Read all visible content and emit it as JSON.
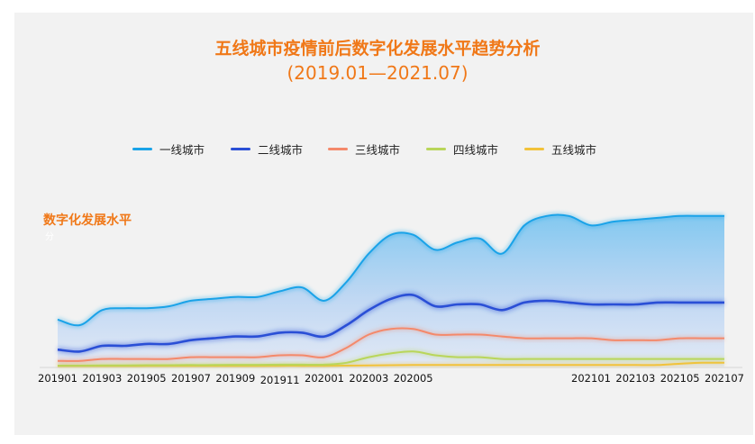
{
  "title": "五线城市疫情前后数字化发展水平趋势分析",
  "subtitle": "(2019.01—2021.07)",
  "legend": [
    {
      "name": "一线城市",
      "color": "#1aa3e8"
    },
    {
      "name": "二线城市",
      "color": "#2a4fd6"
    },
    {
      "name": "三线城市",
      "color": "#f4896b"
    },
    {
      "name": "四线城市",
      "color": "#b9d65a"
    },
    {
      "name": "五线城市",
      "color": "#f2c23a"
    }
  ],
  "chart_data": {
    "type": "area",
    "ylabel": "数字化发展水平",
    "yunit": "分",
    "x": [
      "201901",
      "201902",
      "201903",
      "201904",
      "201905",
      "201906",
      "201907",
      "201908",
      "201909",
      "201910",
      "201911",
      "201912",
      "202001",
      "202002",
      "202003",
      "202004",
      "202005",
      "202006",
      "202007",
      "202008",
      "202009",
      "202010",
      "202011",
      "202012",
      "202101",
      "202102",
      "202103",
      "202104",
      "202105",
      "202106",
      "202107"
    ],
    "xtick_labels": [
      "201901",
      "201903",
      "201905",
      "201907",
      "201909",
      "201911",
      "202001",
      "202003",
      "202005",
      "202101",
      "202103",
      "202105",
      "202107"
    ],
    "ylim": [
      0,
      100
    ],
    "grid": false,
    "legend_position": "top",
    "series": [
      {
        "name": "一线城市",
        "color": "#1aa3e8",
        "values": [
          25,
          22,
          30,
          31,
          31,
          32,
          35,
          36,
          37,
          37,
          40,
          42,
          35,
          45,
          60,
          70,
          70,
          62,
          66,
          68,
          60,
          75,
          80,
          80,
          75,
          77,
          78,
          79,
          80,
          80,
          80
        ]
      },
      {
        "name": "二线城市",
        "color": "#2a4fd6",
        "values": [
          9,
          8,
          11,
          11,
          12,
          12,
          14,
          15,
          16,
          16,
          18,
          18,
          16,
          22,
          30,
          36,
          38,
          32,
          33,
          33,
          30,
          34,
          35,
          34,
          33,
          33,
          33,
          34,
          34,
          34,
          34
        ]
      },
      {
        "name": "三线城市",
        "color": "#f4896b",
        "values": [
          3,
          3,
          4,
          4,
          4,
          4,
          5,
          5,
          5,
          5,
          6,
          6,
          5,
          10,
          17,
          20,
          20,
          17,
          17,
          17,
          16,
          15,
          15,
          15,
          15,
          14,
          14,
          14,
          15,
          15,
          15
        ]
      },
      {
        "name": "四线城市",
        "color": "#b9d65a",
        "values": [
          0.5,
          0.5,
          0.6,
          0.6,
          0.7,
          0.7,
          0.8,
          0.8,
          0.9,
          0.9,
          1,
          1,
          1,
          2,
          5,
          7,
          8,
          6,
          5,
          5,
          4,
          4,
          4,
          4,
          4,
          4,
          4,
          4,
          4,
          4,
          4
        ]
      },
      {
        "name": "五线城市",
        "color": "#f2c23a",
        "values": [
          0.2,
          0.2,
          0.2,
          0.2,
          0.3,
          0.3,
          0.3,
          0.3,
          0.3,
          0.3,
          0.4,
          0.4,
          0.4,
          0.5,
          0.6,
          0.7,
          0.8,
          0.8,
          0.8,
          0.8,
          0.8,
          0.8,
          0.8,
          0.8,
          0.8,
          0.8,
          0.8,
          0.8,
          1.5,
          2,
          2
        ]
      }
    ]
  }
}
